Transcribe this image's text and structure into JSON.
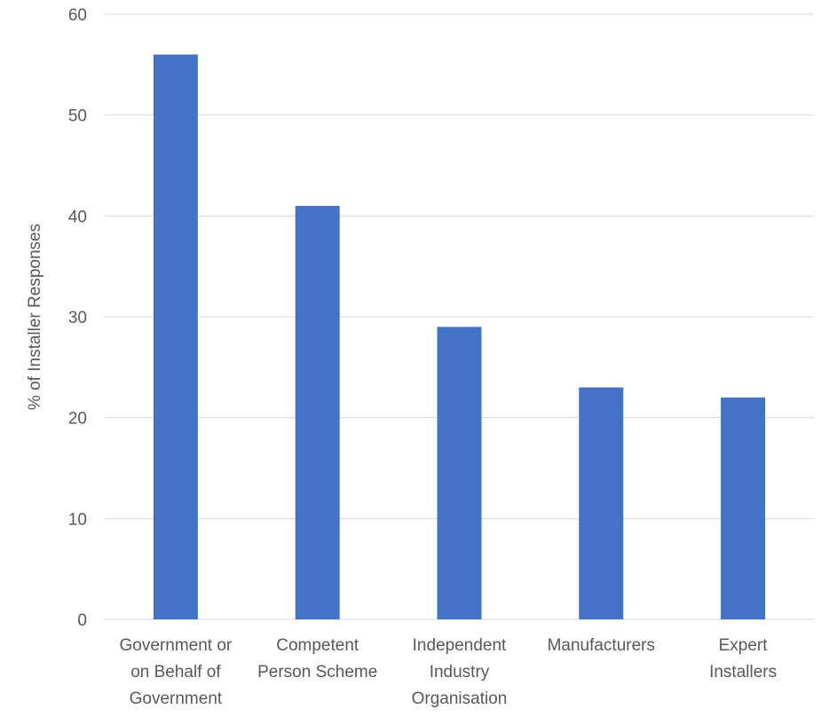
{
  "chart_data": {
    "type": "bar",
    "title": "",
    "xlabel": "",
    "ylabel": "% of Installer Responses",
    "ylim": [
      0,
      60
    ],
    "yticks": [
      0,
      10,
      20,
      30,
      40,
      50,
      60
    ],
    "grid": true,
    "legend": "none",
    "categories": [
      [
        "Government or",
        "on Behalf of",
        "Government"
      ],
      [
        "Competent",
        "Person Scheme"
      ],
      [
        "Independent",
        "Industry",
        "Organisation"
      ],
      [
        "Manufacturers"
      ],
      [
        "Expert",
        "Installers"
      ]
    ],
    "values": [
      56,
      41,
      29,
      23,
      22
    ],
    "bar_color": "#4472c4"
  }
}
